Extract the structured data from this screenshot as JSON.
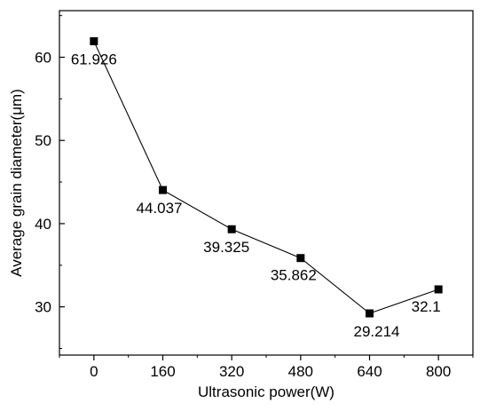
{
  "chart_data": {
    "type": "line",
    "title": "",
    "xlabel": "Ultrasonic power(W)",
    "ylabel": "Average grain diameter(μm)",
    "x": [
      0,
      160,
      320,
      480,
      640,
      800
    ],
    "series": [
      {
        "values": [
          61.926,
          44.037,
          39.325,
          35.862,
          29.214,
          32.1
        ],
        "labels": [
          "61.926",
          "44.037",
          "39.325",
          "35.862",
          "29.214",
          "32.1"
        ],
        "marker": "square",
        "color": "#000000"
      }
    ],
    "xticks": [
      0,
      160,
      320,
      480,
      640,
      800
    ],
    "xtick_labels": [
      "0",
      "160",
      "320",
      "480",
      "640",
      "800"
    ],
    "yticks": [
      30,
      40,
      50,
      60
    ],
    "ytick_labels": [
      "30",
      "40",
      "50",
      "60"
    ],
    "xlim": [
      -80,
      880
    ],
    "ylim": [
      24.2,
      65.6
    ],
    "grid": false,
    "legend": "none"
  }
}
